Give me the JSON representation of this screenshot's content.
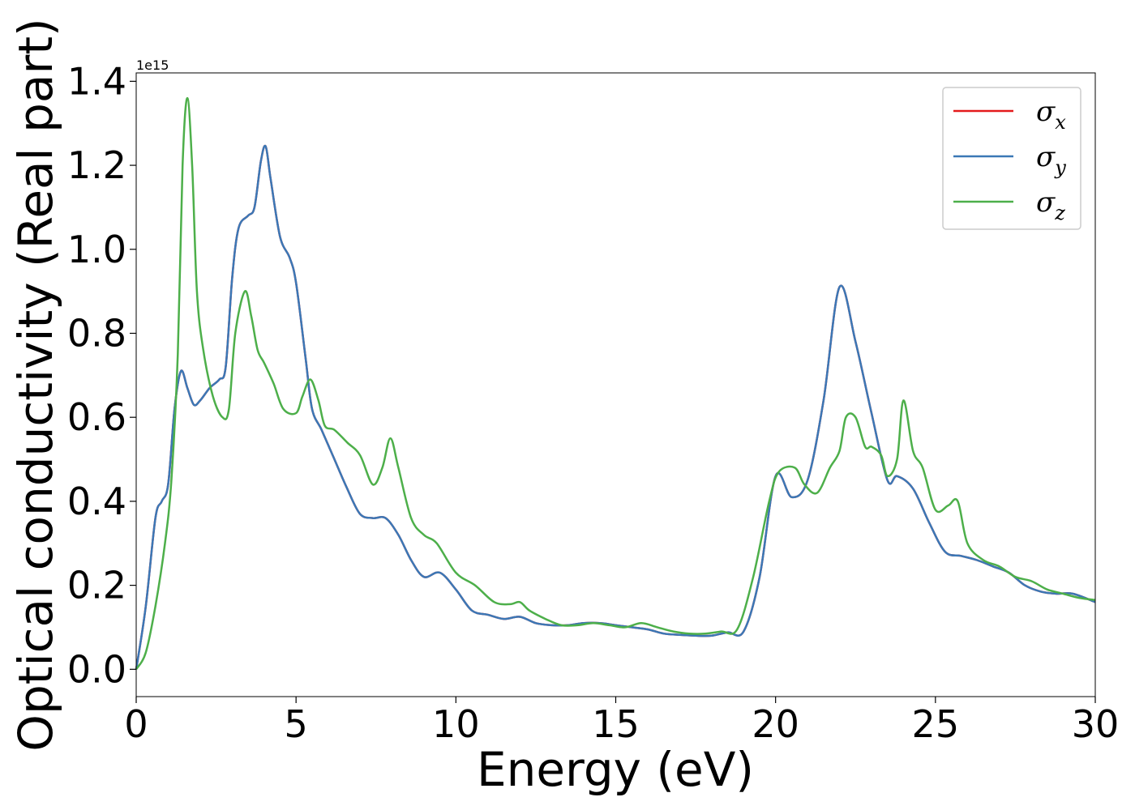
{
  "chart_data": {
    "type": "line",
    "xlabel": "Energy (eV)",
    "ylabel": "Optical conductivity (Real part)",
    "y_offset_label": "1e15",
    "xlim": [
      0,
      30
    ],
    "ylim": [
      -0.065,
      1.42
    ],
    "x_ticks": [
      0,
      5,
      10,
      15,
      20,
      25,
      30
    ],
    "x_tick_labels": [
      "0",
      "5",
      "10",
      "15",
      "20",
      "25",
      "30"
    ],
    "y_ticks": [
      0.0,
      0.2,
      0.4,
      0.6,
      0.8,
      1.0,
      1.2,
      1.4
    ],
    "y_tick_labels": [
      "0.0",
      "0.2",
      "0.4",
      "0.6",
      "0.8",
      "1.0",
      "1.2",
      "1.4"
    ],
    "grid": false,
    "legend_position": "top-right",
    "series": [
      {
        "name": "σx",
        "name_base": "σ",
        "name_sub": "x",
        "color": "#e41a1c",
        "x": [
          0,
          0.3,
          0.6,
          0.8,
          1.0,
          1.2,
          1.4,
          1.6,
          1.8,
          2.0,
          2.3,
          2.6,
          2.8,
          3.0,
          3.2,
          3.5,
          3.7,
          3.9,
          4.05,
          4.2,
          4.5,
          4.8,
          5.0,
          5.3,
          5.5,
          5.8,
          6.2,
          6.6,
          7.0,
          7.4,
          7.8,
          8.2,
          8.6,
          9.0,
          9.5,
          10.0,
          10.5,
          11.0,
          11.5,
          12.0,
          12.5,
          13.0,
          13.5,
          14.0,
          14.5,
          15.0,
          15.5,
          16.0,
          16.5,
          17.0,
          17.5,
          18.0,
          18.5,
          19.0,
          19.5,
          20.0,
          20.5,
          21.0,
          21.5,
          22.0,
          22.5,
          23.0,
          23.5,
          23.8,
          24.3,
          24.8,
          25.3,
          25.8,
          26.3,
          26.8,
          27.3,
          27.8,
          28.3,
          28.8,
          29.3,
          30.0
        ],
        "values": [
          0.0,
          0.15,
          0.36,
          0.4,
          0.44,
          0.62,
          0.71,
          0.67,
          0.63,
          0.64,
          0.67,
          0.69,
          0.72,
          0.93,
          1.05,
          1.08,
          1.1,
          1.21,
          1.245,
          1.17,
          1.03,
          0.98,
          0.92,
          0.74,
          0.62,
          0.57,
          0.5,
          0.43,
          0.37,
          0.36,
          0.36,
          0.32,
          0.26,
          0.22,
          0.23,
          0.19,
          0.14,
          0.13,
          0.12,
          0.125,
          0.11,
          0.105,
          0.105,
          0.11,
          0.11,
          0.105,
          0.1,
          0.095,
          0.085,
          0.082,
          0.08,
          0.08,
          0.088,
          0.09,
          0.22,
          0.46,
          0.41,
          0.45,
          0.64,
          0.91,
          0.78,
          0.61,
          0.45,
          0.46,
          0.43,
          0.35,
          0.28,
          0.27,
          0.26,
          0.245,
          0.23,
          0.2,
          0.185,
          0.18,
          0.18,
          0.16
        ]
      },
      {
        "name": "σy",
        "name_base": "σ",
        "name_sub": "y",
        "color": "#3b78b6",
        "x": [
          0,
          0.3,
          0.6,
          0.8,
          1.0,
          1.2,
          1.4,
          1.6,
          1.8,
          2.0,
          2.3,
          2.6,
          2.8,
          3.0,
          3.2,
          3.5,
          3.7,
          3.9,
          4.05,
          4.2,
          4.5,
          4.8,
          5.0,
          5.3,
          5.5,
          5.8,
          6.2,
          6.6,
          7.0,
          7.4,
          7.8,
          8.2,
          8.6,
          9.0,
          9.5,
          10.0,
          10.5,
          11.0,
          11.5,
          12.0,
          12.5,
          13.0,
          13.5,
          14.0,
          14.5,
          15.0,
          15.5,
          16.0,
          16.5,
          17.0,
          17.5,
          18.0,
          18.5,
          19.0,
          19.5,
          20.0,
          20.5,
          21.0,
          21.5,
          22.0,
          22.5,
          23.0,
          23.5,
          23.8,
          24.3,
          24.8,
          25.3,
          25.8,
          26.3,
          26.8,
          27.3,
          27.8,
          28.3,
          28.8,
          29.3,
          30.0
        ],
        "values": [
          0.0,
          0.15,
          0.36,
          0.4,
          0.44,
          0.62,
          0.71,
          0.67,
          0.63,
          0.64,
          0.67,
          0.69,
          0.72,
          0.93,
          1.05,
          1.08,
          1.1,
          1.21,
          1.245,
          1.17,
          1.03,
          0.98,
          0.92,
          0.74,
          0.62,
          0.57,
          0.5,
          0.43,
          0.37,
          0.36,
          0.36,
          0.32,
          0.26,
          0.22,
          0.23,
          0.19,
          0.14,
          0.13,
          0.12,
          0.125,
          0.11,
          0.105,
          0.105,
          0.11,
          0.11,
          0.105,
          0.1,
          0.095,
          0.085,
          0.082,
          0.08,
          0.08,
          0.088,
          0.09,
          0.22,
          0.46,
          0.41,
          0.45,
          0.64,
          0.91,
          0.78,
          0.61,
          0.45,
          0.46,
          0.43,
          0.35,
          0.28,
          0.27,
          0.26,
          0.245,
          0.23,
          0.2,
          0.185,
          0.18,
          0.18,
          0.16
        ]
      },
      {
        "name": "σz",
        "name_base": "σ",
        "name_sub": "z",
        "color": "#4daf4a",
        "x": [
          0,
          0.3,
          0.6,
          0.9,
          1.1,
          1.3,
          1.45,
          1.6,
          1.75,
          1.9,
          2.1,
          2.4,
          2.7,
          2.9,
          3.1,
          3.4,
          3.6,
          3.8,
          4.0,
          4.3,
          4.6,
          5.0,
          5.2,
          5.45,
          5.7,
          5.9,
          6.2,
          6.6,
          7.0,
          7.4,
          7.7,
          7.95,
          8.2,
          8.6,
          9.0,
          9.4,
          10.0,
          10.6,
          11.2,
          11.7,
          12.0,
          12.3,
          12.8,
          13.3,
          13.8,
          14.3,
          14.8,
          15.3,
          15.8,
          16.3,
          16.8,
          17.3,
          17.8,
          18.3,
          18.8,
          19.3,
          19.8,
          20.1,
          20.6,
          20.9,
          21.3,
          21.7,
          22.0,
          22.2,
          22.5,
          22.8,
          23.0,
          23.3,
          23.5,
          23.8,
          24.0,
          24.3,
          24.6,
          25.0,
          25.4,
          25.7,
          26.0,
          26.5,
          27.0,
          27.5,
          28.0,
          28.5,
          29.0,
          29.5,
          30.0
        ],
        "values": [
          0.0,
          0.04,
          0.15,
          0.3,
          0.45,
          0.75,
          1.2,
          1.36,
          1.2,
          0.9,
          0.76,
          0.65,
          0.6,
          0.62,
          0.8,
          0.9,
          0.84,
          0.76,
          0.73,
          0.68,
          0.62,
          0.61,
          0.65,
          0.69,
          0.64,
          0.58,
          0.57,
          0.54,
          0.51,
          0.44,
          0.48,
          0.55,
          0.48,
          0.36,
          0.32,
          0.3,
          0.23,
          0.2,
          0.16,
          0.155,
          0.16,
          0.14,
          0.12,
          0.105,
          0.105,
          0.11,
          0.105,
          0.1,
          0.11,
          0.1,
          0.09,
          0.085,
          0.085,
          0.09,
          0.095,
          0.22,
          0.4,
          0.47,
          0.48,
          0.44,
          0.42,
          0.48,
          0.52,
          0.6,
          0.6,
          0.53,
          0.53,
          0.51,
          0.46,
          0.5,
          0.64,
          0.52,
          0.48,
          0.38,
          0.39,
          0.4,
          0.3,
          0.26,
          0.245,
          0.22,
          0.21,
          0.19,
          0.18,
          0.17,
          0.165
        ]
      }
    ]
  }
}
